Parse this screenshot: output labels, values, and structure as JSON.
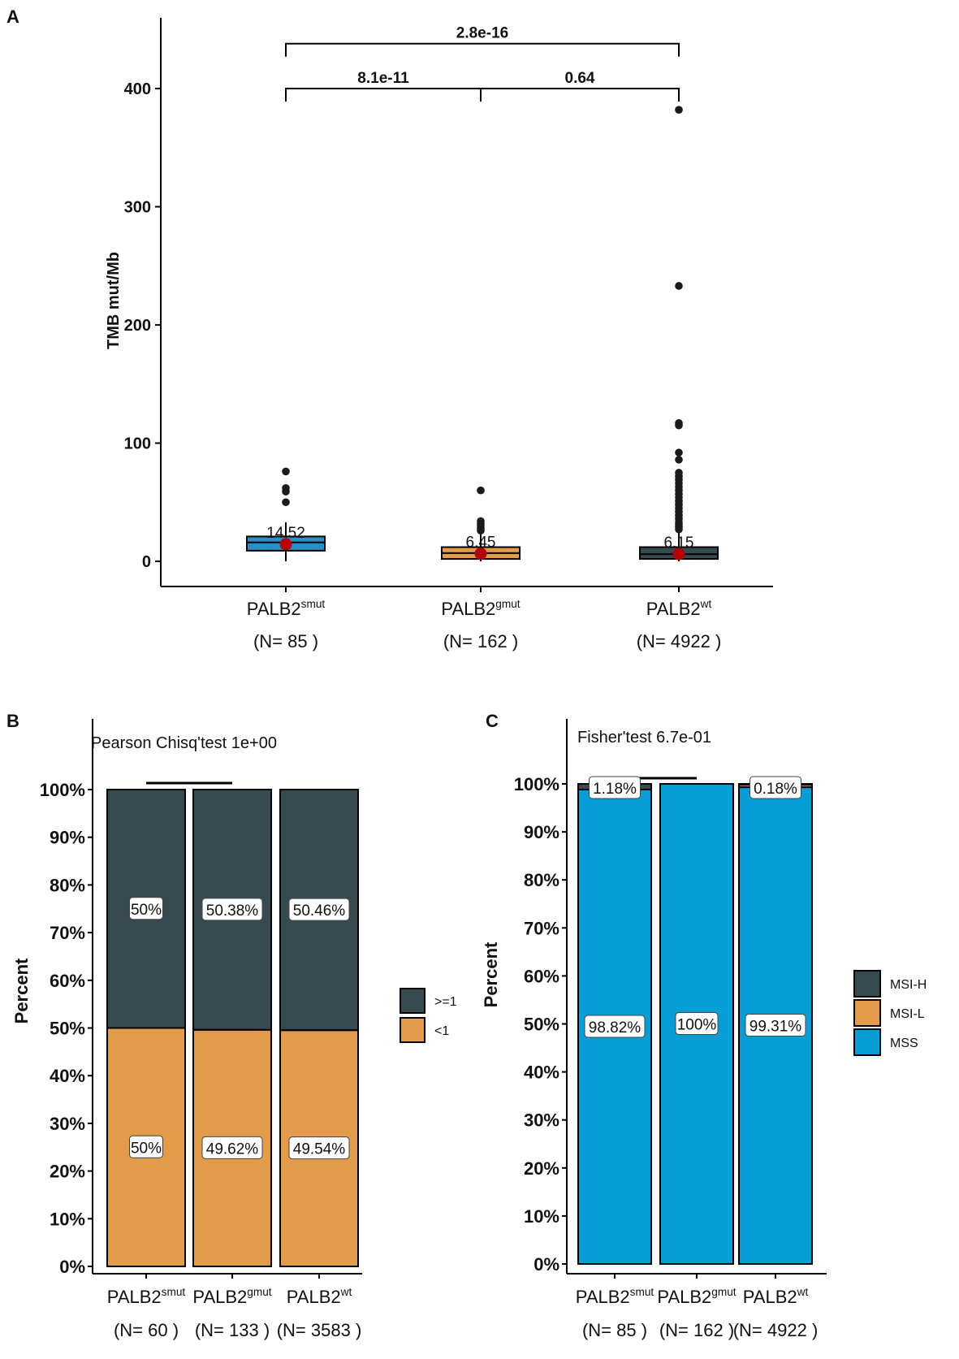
{
  "colors": {
    "blue": "#2a8ec9",
    "orange": "#e29a4b",
    "dark": "#374a50",
    "mss": "#099dd6",
    "red": "#b30000"
  },
  "chart_data": [
    {
      "panel": "A",
      "type": "box",
      "ylabel": "TMB mut/Mb",
      "ylim": [
        -20,
        460
      ],
      "yticks": [
        "0",
        "100",
        "200",
        "300",
        "400"
      ],
      "ytick_values": [
        0,
        100,
        200,
        300,
        400
      ],
      "groups": [
        {
          "name": "PALB2",
          "sup": "smut",
          "n_label": "(N= 85 )",
          "color": "blue",
          "q1": 9,
          "median": 16,
          "q3": 21,
          "whisker_low": 0,
          "whisker_high": 33,
          "mean": 14.52,
          "mean_label": "14.52",
          "outliers": [
            50,
            59,
            62,
            76
          ]
        },
        {
          "name": "PALB2",
          "sup": "gmut",
          "n_label": "(N= 162 )",
          "color": "orange",
          "q1": 2,
          "median": 7,
          "q3": 12,
          "whisker_low": 0,
          "whisker_high": 25,
          "mean": 6.45,
          "mean_label": "6.45",
          "outliers": [
            26,
            28,
            30,
            32,
            34,
            60
          ]
        },
        {
          "name": "PALB2",
          "sup": "wt",
          "n_label": "(N= 4922 )",
          "color": "dark",
          "q1": 2,
          "median": 6,
          "q3": 12,
          "whisker_low": 0,
          "whisker_high": 25,
          "mean": 6.15,
          "mean_label": "6.15",
          "outliers": [
            27,
            29,
            31,
            33,
            36,
            39,
            42,
            45,
            48,
            51,
            54,
            57,
            60,
            63,
            66,
            69,
            72,
            75,
            86,
            92,
            115,
            117,
            233,
            382
          ]
        }
      ],
      "comparisons": [
        {
          "from": 0,
          "to": 1,
          "y": 400,
          "label": "8.1e-11"
        },
        {
          "from": 1,
          "to": 2,
          "y": 400,
          "label": "0.64"
        },
        {
          "from": 0,
          "to": 2,
          "y": 438,
          "label": "2.8e-16"
        }
      ]
    },
    {
      "panel": "B",
      "type": "stacked_bar",
      "title": "Pearson Chisq'test 1e+00",
      "ylabel": "Percent",
      "yticks": [
        "0%",
        "10%",
        "20%",
        "30%",
        "40%",
        "50%",
        "60%",
        "70%",
        "80%",
        "90%",
        "100%"
      ],
      "categories": [
        {
          "name": "PALB2",
          "sup": "smut",
          "n_label": "(N= 60 )"
        },
        {
          "name": "PALB2",
          "sup": "gmut",
          "n_label": "(N= 133 )"
        },
        {
          "name": "PALB2",
          "sup": "wt",
          "n_label": "(N= 3583 )"
        }
      ],
      "series": [
        {
          "name": "<1",
          "color": "orange",
          "values": [
            50,
            49.62,
            49.54
          ],
          "labels": [
            "50%",
            "49.62%",
            "49.54%"
          ]
        },
        {
          "name": ">=1",
          "color": "dark",
          "values": [
            50,
            50.38,
            50.46
          ],
          "labels": [
            "50%",
            "50.38%",
            "50.46%"
          ]
        }
      ],
      "legend": [
        {
          "name": ">=1",
          "color": "dark"
        },
        {
          "name": "<1",
          "color": "orange"
        }
      ]
    },
    {
      "panel": "C",
      "type": "stacked_bar",
      "title": "Fisher'test 6.7e-01",
      "ylabel": "Percent",
      "yticks": [
        "0%",
        "10%",
        "20%",
        "30%",
        "40%",
        "50%",
        "60%",
        "70%",
        "80%",
        "90%",
        "100%"
      ],
      "categories": [
        {
          "name": "PALB2",
          "sup": "smut",
          "n_label": "(N= 85 )"
        },
        {
          "name": "PALB2",
          "sup": "gmut",
          "n_label": "(N= 162 )"
        },
        {
          "name": "PALB2",
          "sup": "wt",
          "n_label": "(N= 4922 )"
        }
      ],
      "series": [
        {
          "name": "MSS",
          "color": "mss",
          "values": [
            98.82,
            100,
            99.31
          ],
          "labels": [
            "98.82%",
            "100%",
            "99.31%"
          ]
        },
        {
          "name": "MSI-L",
          "color": "orange",
          "values": [
            0,
            0,
            0.51
          ],
          "labels": [
            "",
            "",
            ""
          ]
        },
        {
          "name": "MSI-H",
          "color": "dark",
          "values": [
            1.18,
            0,
            0.18
          ],
          "labels": [
            "1.18%",
            "",
            "0.18%"
          ]
        }
      ],
      "legend": [
        {
          "name": "MSI-H",
          "color": "dark"
        },
        {
          "name": "MSI-L",
          "color": "orange"
        },
        {
          "name": "MSS",
          "color": "mss"
        }
      ]
    }
  ]
}
